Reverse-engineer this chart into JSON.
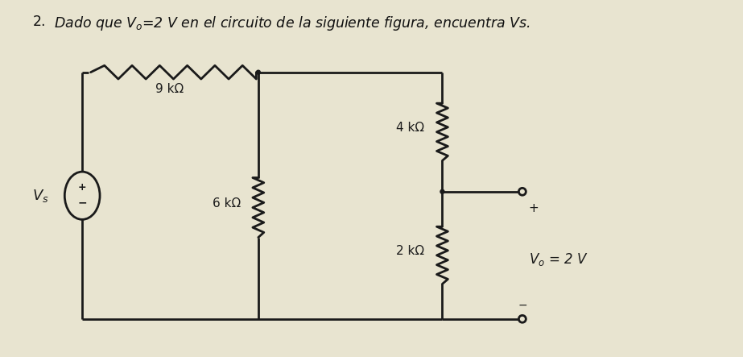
{
  "title_line1": "2.  Dado que V",
  "title_line2": "=2 V en el circuito de la siguiente figura, encuentra Vs.",
  "title_fontsize": 12.5,
  "background_color": "#e8e4d0",
  "line_color": "#1a1a1a",
  "lw": 2.0,
  "R1_label": "9 kΩ",
  "R2_label": "6 kΩ",
  "R3_label": "4 kΩ",
  "R4_label": "2 kΩ",
  "Vs_label": "$V_s$",
  "Vo_label": "$V_o$",
  "plus_label": "+",
  "minus_label": "−",
  "eq_label": "= 2 V"
}
